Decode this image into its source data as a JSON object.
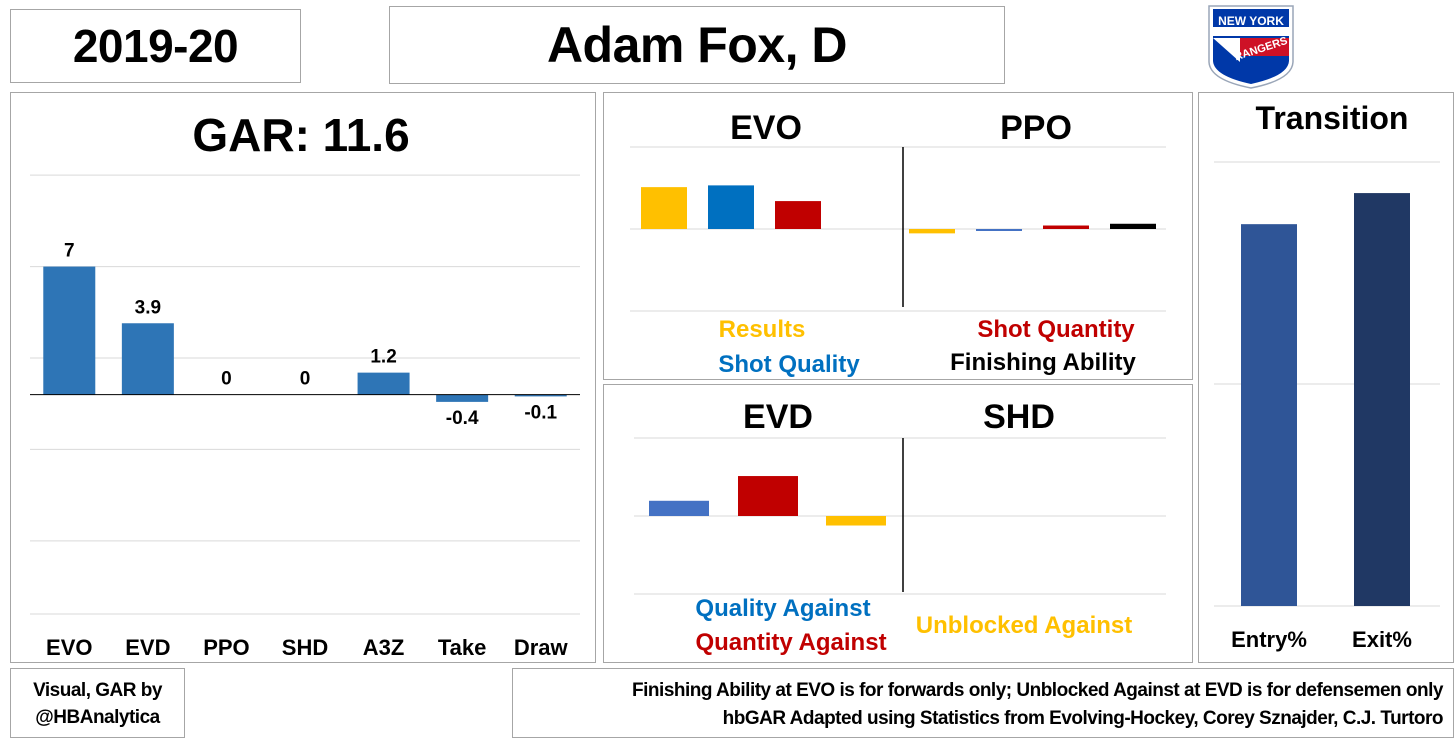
{
  "header": {
    "season": "2019-20",
    "player": "Adam Fox, D",
    "team_logo_text": [
      "NEW YORK",
      "RANGERS"
    ],
    "team_logo_colors": {
      "blue": "#0038a8",
      "red": "#ce1126"
    }
  },
  "footer": {
    "credit_line1": "Visual, GAR by",
    "credit_line2": "@HBAnalytica",
    "note_line1": "Finishing Ability at EVO is for forwards only; Unblocked Against at EVD is for defensemen only",
    "note_line2": "hbGAR Adapted using Statistics from Evolving-Hockey, Corey Sznajder, C.J. Turtoro"
  },
  "colors": {
    "gar_bar": "#2e75b6",
    "results": "#ffc000",
    "shot_quality": "#0070c0",
    "shot_quantity": "#c00000",
    "finishing": "#000000",
    "evd_quality": "#4472c4",
    "entry": "#2f5597",
    "exit": "#203864"
  },
  "chart_data": [
    {
      "type": "bar",
      "title": "GAR: 11.6",
      "categories": [
        "EVO",
        "EVD",
        "PPO",
        "SHD",
        "A3Z",
        "Take",
        "Draw"
      ],
      "values": [
        7,
        3.9,
        0,
        0,
        1.2,
        -0.4,
        -0.1
      ],
      "data_labels": [
        "7",
        "3.9",
        "0",
        "0",
        "1.2",
        "-0.4",
        "-0.1"
      ],
      "ylim": [
        -12,
        12.5
      ],
      "grid": true
    },
    {
      "type": "bar",
      "titles": [
        "EVO",
        "PPO"
      ],
      "groups": [
        {
          "name": "EVO",
          "values": [
            2.4,
            2.5,
            1.6
          ]
        },
        {
          "name": "PPO",
          "values": [
            -0.25,
            -0.1,
            0.2,
            0.3
          ]
        }
      ],
      "legend": [
        {
          "label": "Results",
          "color": "#ffc000"
        },
        {
          "label": "Shot Quantity",
          "color": "#c00000"
        },
        {
          "label": "Shot Quality",
          "color": "#0070c0"
        },
        {
          "label": "Finishing Ability",
          "color": "#000000"
        }
      ],
      "ylim": [
        -4.7,
        4.7
      ],
      "grid": true
    },
    {
      "type": "bar",
      "titles": [
        "EVD",
        "SHD"
      ],
      "groups": [
        {
          "name": "EVD",
          "values": [
            0.8,
            2.1,
            -0.5
          ]
        },
        {
          "name": "SHD",
          "values": []
        }
      ],
      "legend": [
        {
          "label": "Quality Against",
          "color": "#0070c0"
        },
        {
          "label": "Unblocked Against",
          "color": "#ffc000"
        },
        {
          "label": "Quantity Against",
          "color": "#c00000"
        }
      ],
      "ylim": [
        -4.1,
        4.1
      ],
      "grid": true
    },
    {
      "type": "bar",
      "title": "Transition",
      "categories": [
        "Entry%",
        "Exit%"
      ],
      "values": [
        0.86,
        0.93
      ],
      "ylim": [
        0,
        1
      ],
      "grid": true
    }
  ]
}
